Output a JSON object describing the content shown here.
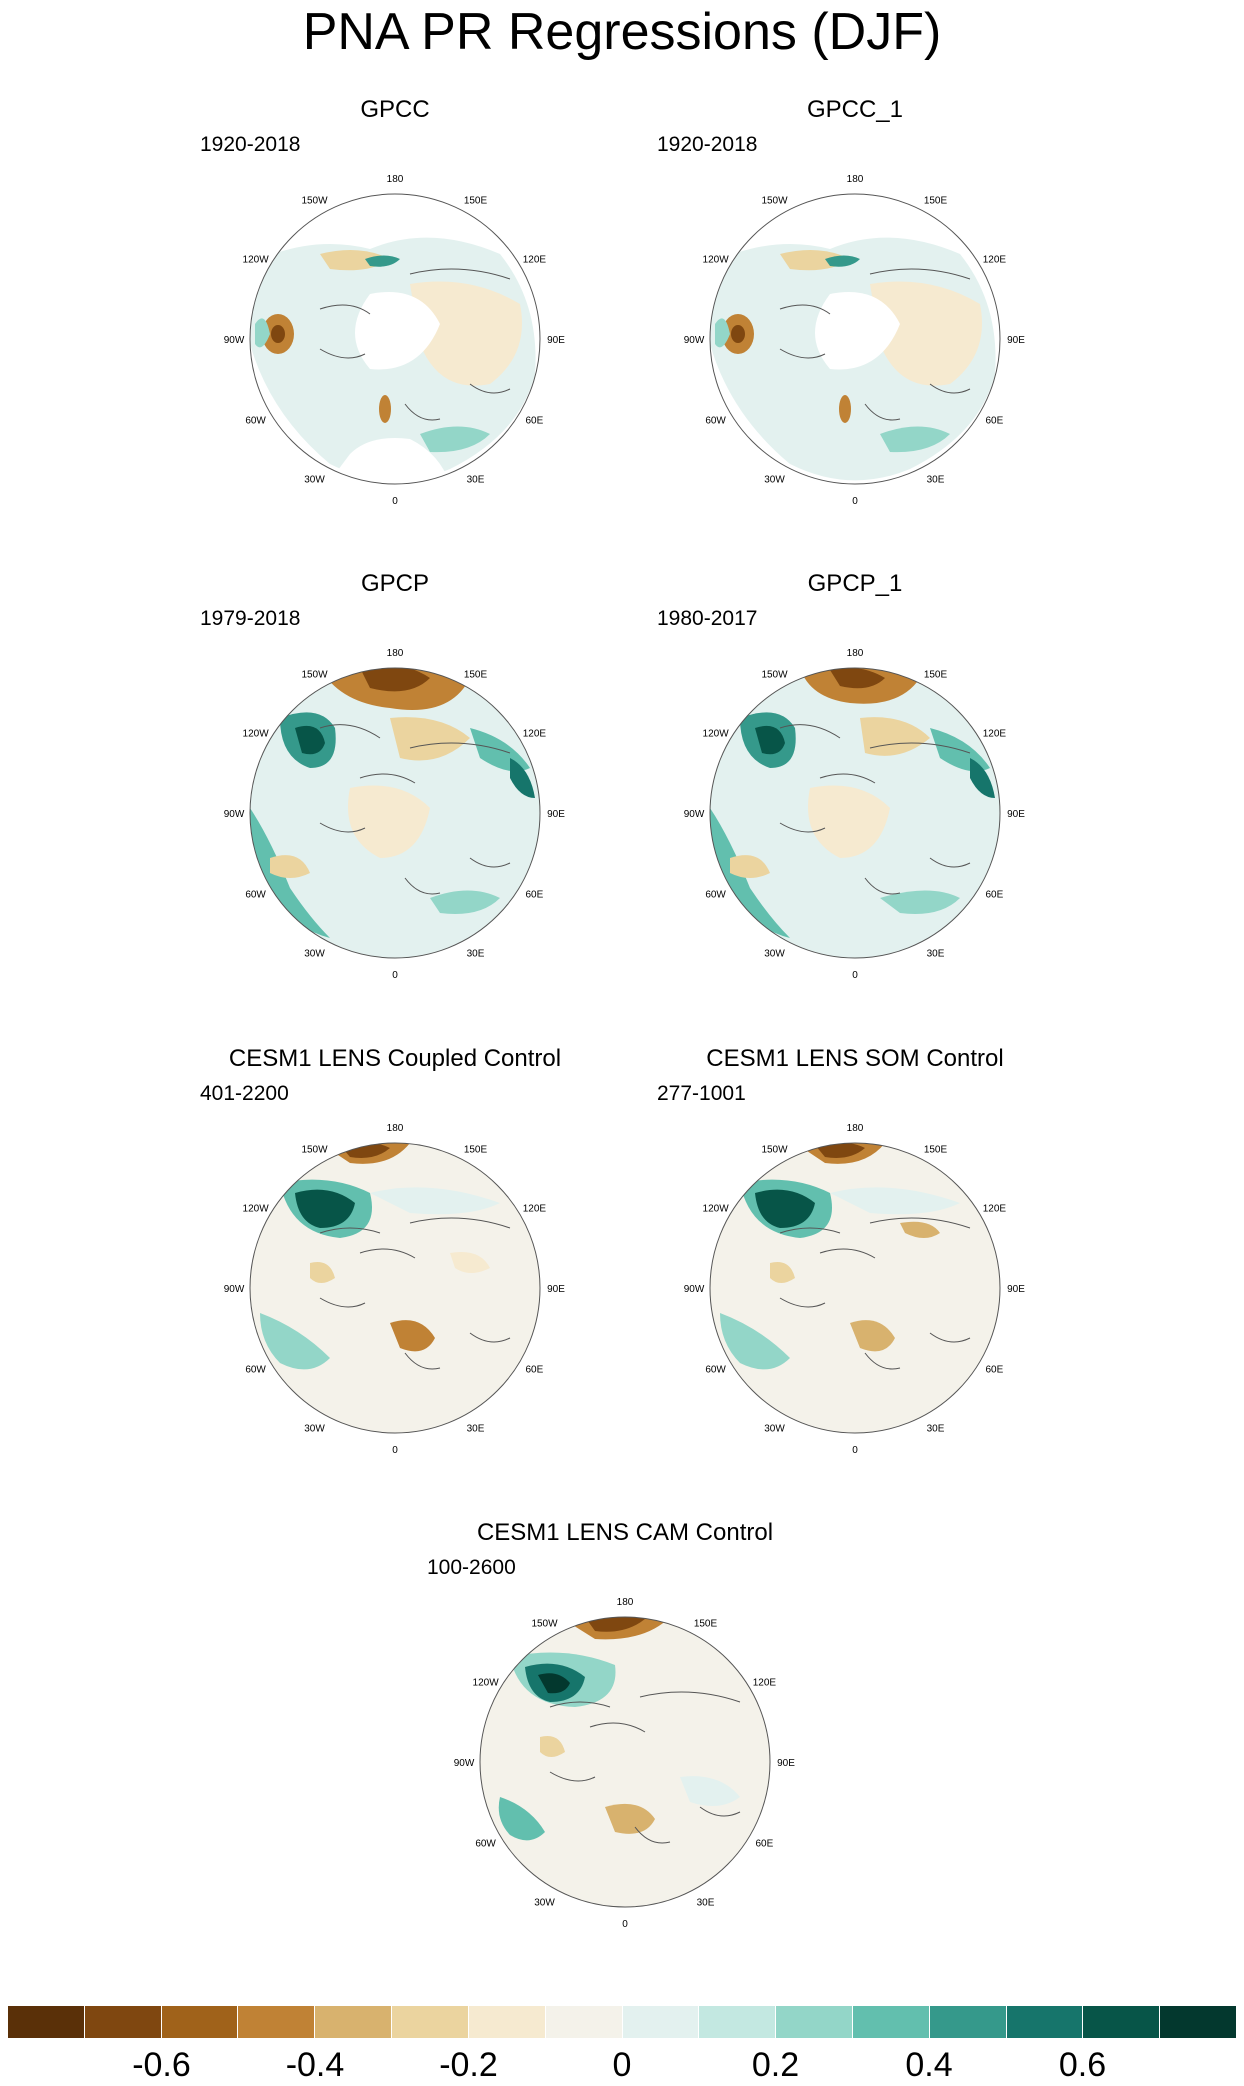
{
  "figure_title": "PNA PR Regressions (DJF)",
  "lon_labels": [
    "180",
    "150E",
    "120E",
    "90E",
    "60E",
    "30E",
    "0",
    "30W",
    "60W",
    "90W",
    "120W",
    "150W"
  ],
  "panels": [
    {
      "title": "GPCC",
      "period": "1920-2018"
    },
    {
      "title": "GPCC_1",
      "period": "1920-2018"
    },
    {
      "title": "GPCP",
      "period": "1979-2018"
    },
    {
      "title": "GPCP_1",
      "period": "1980-2017"
    },
    {
      "title": "CESM1 LENS Coupled Control",
      "period": "401-2200"
    },
    {
      "title": "CESM1 LENS SOM Control",
      "period": "277-1001"
    },
    {
      "title": "CESM1 LENS CAM Control",
      "period": "100-2600"
    }
  ],
  "colorbar": {
    "colors": [
      "#5a3008",
      "#7f4710",
      "#a0621a",
      "#c08235",
      "#d8b26e",
      "#ebd49f",
      "#f6ead0",
      "#f4f2ea",
      "#e3f1ef",
      "#c3e8e1",
      "#93d6c8",
      "#62bfae",
      "#35998b",
      "#16756b",
      "#075548",
      "#03382e"
    ],
    "tick_labels": [
      "-0.6",
      "-0.4",
      "-0.2",
      "0",
      "0.2",
      "0.4",
      "0.6"
    ],
    "tick_values": [
      -0.6,
      -0.4,
      -0.2,
      0,
      0.2,
      0.4,
      0.6
    ],
    "range": [
      -0.8,
      0.8
    ]
  }
}
